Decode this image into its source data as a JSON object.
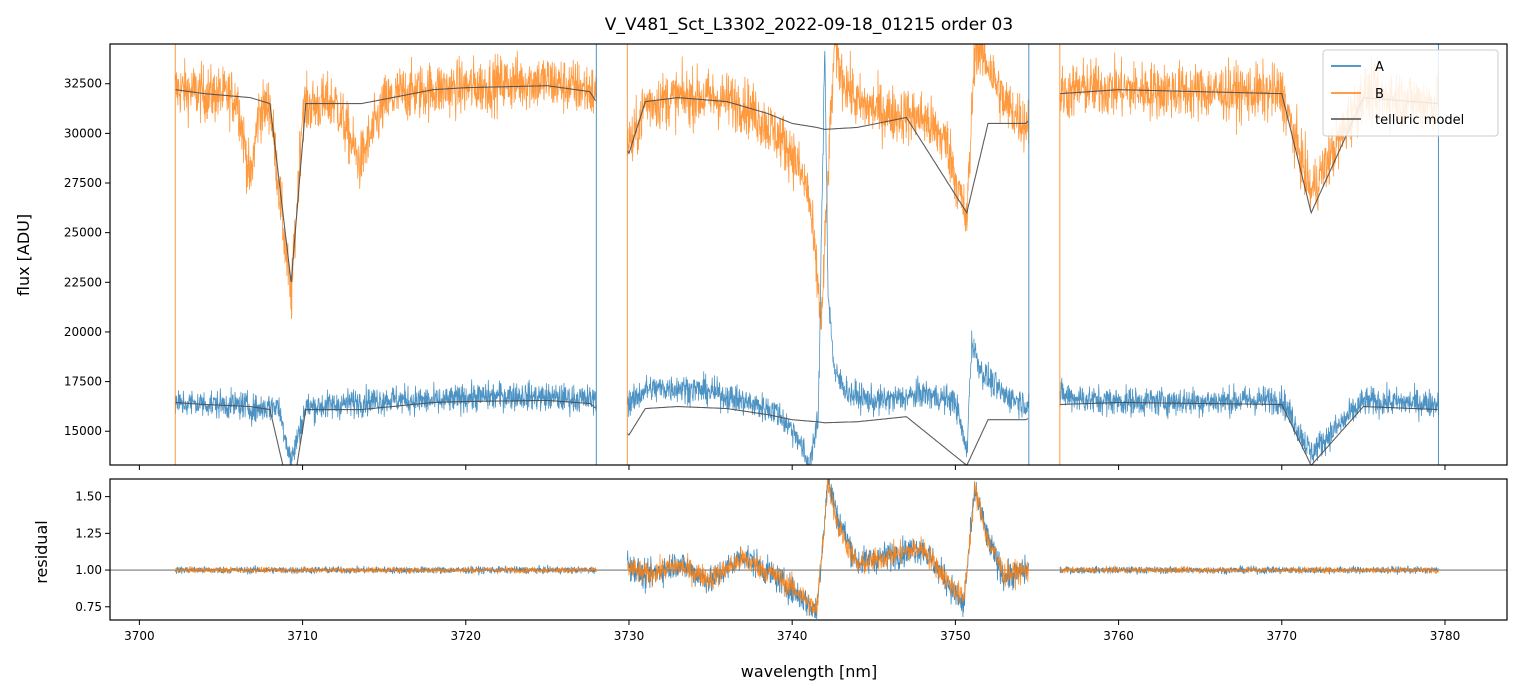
{
  "chart_data": [
    {
      "type": "line",
      "panel": "top",
      "title": "V_V481_Sct_L3302_2022-09-18_01215  order 03",
      "xlabel": "",
      "ylabel": "flux [ADU]",
      "xlim": [
        3698.2,
        3783.8
      ],
      "ylim": [
        13300,
        34500
      ],
      "yticks": [
        15000,
        17500,
        20000,
        22500,
        25000,
        27500,
        30000,
        32500
      ],
      "yticklabels": [
        "15000",
        "17500",
        "20000",
        "22500",
        "25000",
        "27500",
        "30000",
        "32500"
      ],
      "xticks": [
        3700,
        3710,
        3720,
        3730,
        3740,
        3750,
        3760,
        3770,
        3780
      ],
      "legend": {
        "position": "top-right",
        "entries": [
          {
            "label": "A",
            "color": "#1f77b4"
          },
          {
            "label": "B",
            "color": "#ff7f0e"
          },
          {
            "label": "telluric model",
            "color": "#4d4d4d"
          }
        ]
      },
      "segments": [
        [
          3702.2,
          3728.0
        ],
        [
          3729.9,
          3754.5
        ],
        [
          3756.4,
          3779.6
        ]
      ],
      "series": [
        {
          "name": "A",
          "color": "#1f77b4",
          "continuum": 16500,
          "noise": 350,
          "x": [
            3702.5,
            3704,
            3706.5,
            3707,
            3708.5,
            3709.3,
            3710.2,
            3711.7,
            3713.6,
            3715.5,
            3718.6,
            3720,
            3723,
            3725,
            3727.6,
            3730.2,
            3731,
            3733,
            3735,
            3737,
            3739,
            3740.3,
            3741,
            3741.6,
            3742,
            3742.2,
            3742.6,
            3743.5,
            3745,
            3747,
            3748,
            3750,
            3750.7,
            3751,
            3751.6,
            3753,
            3754.3,
            3756.6,
            3758,
            3760,
            3765,
            3770,
            3771.8,
            3775,
            3779.4
          ],
          "y": [
            16400,
            16400,
            16300,
            16100,
            16300,
            13500,
            16200,
            16300,
            16500,
            16600,
            16500,
            16700,
            16800,
            16700,
            16600,
            16500,
            17100,
            17200,
            17000,
            16500,
            16000,
            14800,
            13300,
            15500,
            34500,
            22000,
            17900,
            16900,
            16500,
            16700,
            16900,
            16500,
            13900,
            19500,
            18000,
            16800,
            16400,
            16800,
            16600,
            16500,
            16500,
            16600,
            13900,
            16500,
            16400
          ]
        },
        {
          "name": "B",
          "color": "#ff7f0e",
          "continuum": 32300,
          "noise": 700,
          "x": [
            3702.5,
            3704,
            3706,
            3706.8,
            3707.3,
            3708,
            3709.3,
            3710,
            3712,
            3713.5,
            3715,
            3716,
            3718,
            3720,
            3722,
            3723.5,
            3725,
            3726,
            3727.6,
            3730.2,
            3731,
            3733,
            3735,
            3737,
            3739,
            3740,
            3741,
            3741.8,
            3742.2,
            3742.6,
            3743,
            3744,
            3746,
            3748,
            3749.5,
            3750.7,
            3751.2,
            3752,
            3753,
            3754.3,
            3756.6,
            3758,
            3760,
            3765,
            3770,
            3771.8,
            3775,
            3777,
            3779.4
          ],
          "y": [
            32200,
            32000,
            31800,
            27500,
            31000,
            31500,
            21500,
            31300,
            31600,
            28500,
            31500,
            32000,
            32200,
            32300,
            32500,
            32600,
            32600,
            32400,
            32200,
            29500,
            31500,
            31800,
            31800,
            31500,
            30000,
            29000,
            27000,
            20500,
            28000,
            34500,
            33000,
            31500,
            31000,
            30800,
            29500,
            25500,
            34500,
            33500,
            31500,
            30500,
            32000,
            32300,
            32200,
            32100,
            32000,
            27000,
            32000,
            31800,
            31500
          ]
        },
        {
          "name": "telluric model",
          "color": "#4d4d4d",
          "x": [
            3702.2,
            3704,
            3706.8,
            3708,
            3709.3,
            3710.2,
            3713.6,
            3715.5,
            3718,
            3720,
            3725,
            3727.6,
            3730,
            3731,
            3733,
            3736,
            3738.5,
            3740,
            3741.5,
            3742,
            3744,
            3747,
            3750.7,
            3752,
            3754.3,
            3756.4,
            3760,
            3765,
            3770,
            3771.8,
            3775,
            3779.6
          ],
          "y": [
            32200,
            32000,
            31800,
            31500,
            22500,
            31500,
            31500,
            31800,
            32200,
            32300,
            32400,
            32100,
            29000,
            31600,
            31800,
            31600,
            31000,
            30500,
            30300,
            30200,
            30300,
            30800,
            26000,
            30500,
            30500,
            32000,
            32200,
            32100,
            32000,
            26000,
            31800,
            31500
          ]
        }
      ]
    },
    {
      "type": "line",
      "panel": "bottom",
      "xlabel": "wavelength [nm]",
      "ylabel": "residual",
      "xlim": [
        3698.2,
        3783.8
      ],
      "ylim": [
        0.66,
        1.62
      ],
      "xticks": [
        3700,
        3710,
        3720,
        3730,
        3740,
        3750,
        3760,
        3770,
        3780
      ],
      "xticklabels": [
        "3700",
        "3710",
        "3720",
        "3730",
        "3740",
        "3750",
        "3760",
        "3770",
        "3780"
      ],
      "yticks": [
        0.75,
        1.0,
        1.25,
        1.5
      ],
      "yticklabels": [
        "0.75",
        "1.00",
        "1.25",
        "1.50"
      ],
      "reference_line": 1.0,
      "series": [
        {
          "name": "A",
          "color": "#1f77b4",
          "x": [
            3702.2,
            3715,
            3728.0,
            3729.9,
            3731,
            3733,
            3735,
            3737,
            3739,
            3740.5,
            3741.5,
            3742.2,
            3742.8,
            3744,
            3746,
            3748,
            3749.5,
            3750.5,
            3751.2,
            3752,
            3753,
            3754.5,
            3756.4,
            3765,
            3779.6
          ],
          "y": [
            1.0,
            1.0,
            1.0,
            1.05,
            0.95,
            1.05,
            0.92,
            1.1,
            0.95,
            0.82,
            0.72,
            1.62,
            1.35,
            1.05,
            1.1,
            1.15,
            0.92,
            0.75,
            1.55,
            1.2,
            0.95,
            1.0,
            1.0,
            1.0,
            1.0
          ]
        },
        {
          "name": "B",
          "color": "#ff7f0e",
          "x": [
            3702.2,
            3715,
            3728.0,
            3729.9,
            3731,
            3733,
            3735,
            3737,
            3739,
            3740.5,
            3741.5,
            3742.2,
            3742.8,
            3744,
            3746,
            3748,
            3749.5,
            3750.5,
            3751.2,
            3752,
            3753,
            3754.5,
            3756.4,
            3765,
            3779.6
          ],
          "y": [
            1.0,
            1.0,
            1.0,
            1.02,
            0.97,
            1.03,
            0.94,
            1.08,
            0.96,
            0.84,
            0.72,
            1.6,
            1.3,
            1.03,
            1.1,
            1.15,
            0.93,
            0.8,
            1.55,
            1.2,
            0.97,
            1.0,
            1.0,
            1.0,
            1.0
          ]
        }
      ]
    }
  ]
}
